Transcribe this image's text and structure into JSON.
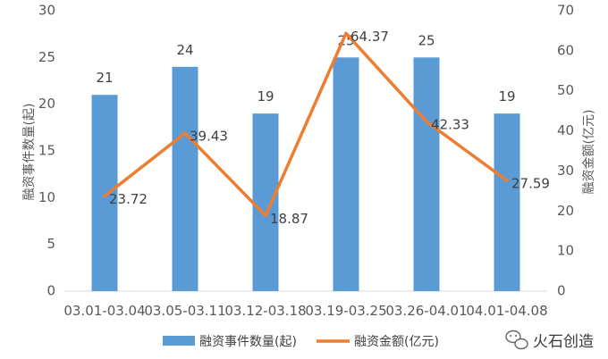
{
  "chart_data": {
    "type": "bar",
    "categories": [
      "03.01-03.04",
      "03.05-03.11",
      "03.12-03.18",
      "03.19-03.25",
      "03.26-04.01",
      "04.01-04.08"
    ],
    "series": [
      {
        "name": "融资事件数量(起)",
        "type": "bar",
        "axis": "left",
        "values": [
          21,
          24,
          19,
          25,
          25,
          19
        ],
        "color": "#5b9bd5"
      },
      {
        "name": "融资金额(亿元)",
        "type": "line",
        "axis": "right",
        "values": [
          23.72,
          39.43,
          18.87,
          64.37,
          42.33,
          27.59
        ],
        "color": "#ed7d31"
      }
    ],
    "bar_labels": [
      "21",
      "24",
      "19",
      "25",
      "25",
      "19"
    ],
    "line_labels": [
      "23.72",
      "39.43",
      "18.87",
      "64.37",
      "42.33",
      "27.59"
    ],
    "ylabel_left": "融资事件数量(起)",
    "ylabel_right": "融资金额(亿元)",
    "ylim_left": [
      0,
      30
    ],
    "ylim_right": [
      0,
      70
    ],
    "yticks_left": [
      "0",
      "5",
      "10",
      "15",
      "20",
      "25",
      "30"
    ],
    "yticks_right": [
      "0",
      "10",
      "20",
      "30",
      "40",
      "50",
      "60",
      "70"
    ],
    "grid": false,
    "legend_position": "bottom"
  },
  "watermark": {
    "text": "火石创造",
    "icon": "wechat-icon"
  }
}
